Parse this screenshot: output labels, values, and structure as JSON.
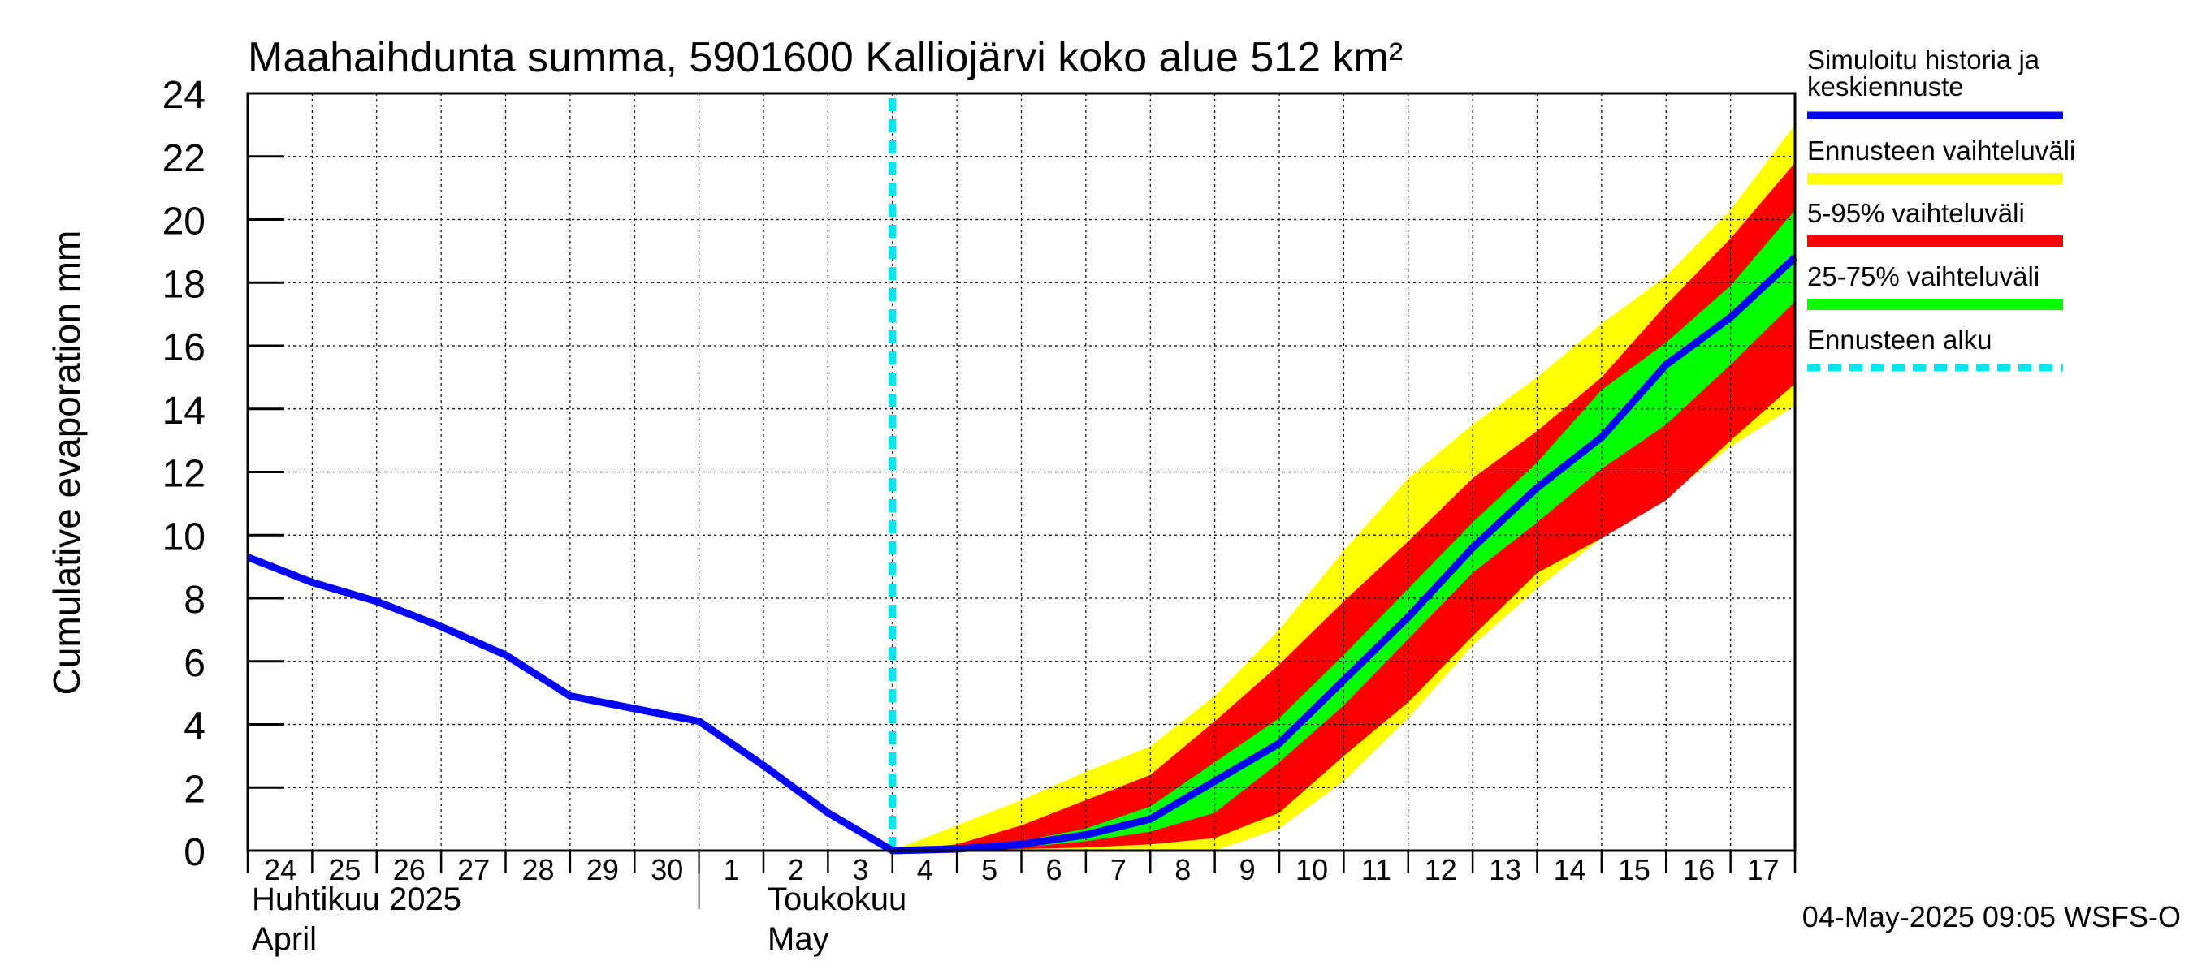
{
  "chart_data": {
    "type": "area",
    "title": "Maahaihdunta summa, 5901600 Kalliojärvi koko alue 512 km²",
    "ylabel": "Cumulative evaporation   mm",
    "ylim": [
      0,
      24
    ],
    "yticks": [
      0,
      2,
      4,
      6,
      8,
      10,
      12,
      14,
      16,
      18,
      20,
      22,
      24
    ],
    "xlim": [
      0,
      24
    ],
    "x_day_labels": [
      "24",
      "25",
      "26",
      "27",
      "28",
      "29",
      "30",
      "1",
      "2",
      "3",
      "4",
      "5",
      "6",
      "7",
      "8",
      "9",
      "10",
      "11",
      "12",
      "13",
      "14",
      "15",
      "16",
      "17"
    ],
    "month_labels": [
      {
        "line1": "Huhtikuu  2025",
        "line2": "April",
        "day_index": 0
      },
      {
        "line1": "Toukokuu",
        "line2": "May",
        "day_index": 8
      }
    ],
    "month_divider_day_index": 7,
    "forecast_start_x": 10,
    "grid": true,
    "legend_position": "right",
    "footer": "04-May-2025 09:05 WSFS-O",
    "series": [
      {
        "name": "Simuloitu historia ja keskiennuste",
        "color": "#0000ff",
        "x": [
          0,
          1,
          2,
          3,
          4,
          5,
          6,
          7,
          8,
          9,
          10,
          11,
          12,
          13,
          14,
          15,
          16,
          17,
          18,
          19,
          20,
          21,
          22,
          23,
          24
        ],
        "values": [
          9.3,
          8.5,
          7.9,
          7.1,
          6.2,
          4.9,
          4.5,
          4.1,
          2.7,
          1.2,
          0,
          0.05,
          0.2,
          0.5,
          1.0,
          2.2,
          3.4,
          5.4,
          7.4,
          9.6,
          11.5,
          13.1,
          15.4,
          16.9,
          18.8
        ]
      },
      {
        "name": "Ennusteen vaihteluväli",
        "color": "#ffff00",
        "x": [
          10,
          11,
          12,
          13,
          14,
          15,
          16,
          17,
          18,
          19,
          20,
          21,
          22,
          23,
          24
        ],
        "lower": [
          0,
          0,
          0,
          0,
          0,
          0,
          0.7,
          2.2,
          4.2,
          6.5,
          8.3,
          9.9,
          11.2,
          12.8,
          14.1
        ],
        "upper": [
          0,
          0.8,
          1.6,
          2.5,
          3.3,
          4.9,
          7.0,
          9.5,
          11.8,
          13.5,
          15.0,
          16.7,
          18.2,
          20.3,
          23.0
        ]
      },
      {
        "name": "5-95% vaihteluväli",
        "color": "#ff0000",
        "x": [
          10,
          11,
          12,
          13,
          14,
          15,
          16,
          17,
          18,
          19,
          20,
          21,
          22,
          23,
          24
        ],
        "lower": [
          0,
          0,
          0.05,
          0.1,
          0.2,
          0.4,
          1.2,
          3.0,
          4.7,
          6.8,
          8.8,
          9.9,
          11.1,
          13.0,
          14.8
        ],
        "upper": [
          0,
          0.2,
          0.8,
          1.6,
          2.4,
          4.1,
          5.9,
          7.9,
          9.8,
          11.8,
          13.3,
          15.0,
          17.3,
          19.4,
          21.8
        ]
      },
      {
        "name": "25-75% vaihteluväli",
        "color": "#00ff00",
        "x": [
          10,
          11,
          12,
          13,
          14,
          15,
          16,
          17,
          18,
          19,
          20,
          21,
          22,
          23,
          24
        ],
        "lower": [
          0,
          0,
          0.1,
          0.3,
          0.6,
          1.2,
          2.8,
          4.6,
          6.7,
          8.8,
          10.4,
          12.1,
          13.5,
          15.4,
          17.4
        ],
        "upper": [
          0,
          0.1,
          0.3,
          0.7,
          1.4,
          2.8,
          4.2,
          6.2,
          8.3,
          10.4,
          12.3,
          14.6,
          16.1,
          17.9,
          20.3
        ]
      },
      {
        "name": "Ennusteen alku",
        "color": "#00e5ee",
        "style": "dashed-vertical"
      }
    ]
  }
}
